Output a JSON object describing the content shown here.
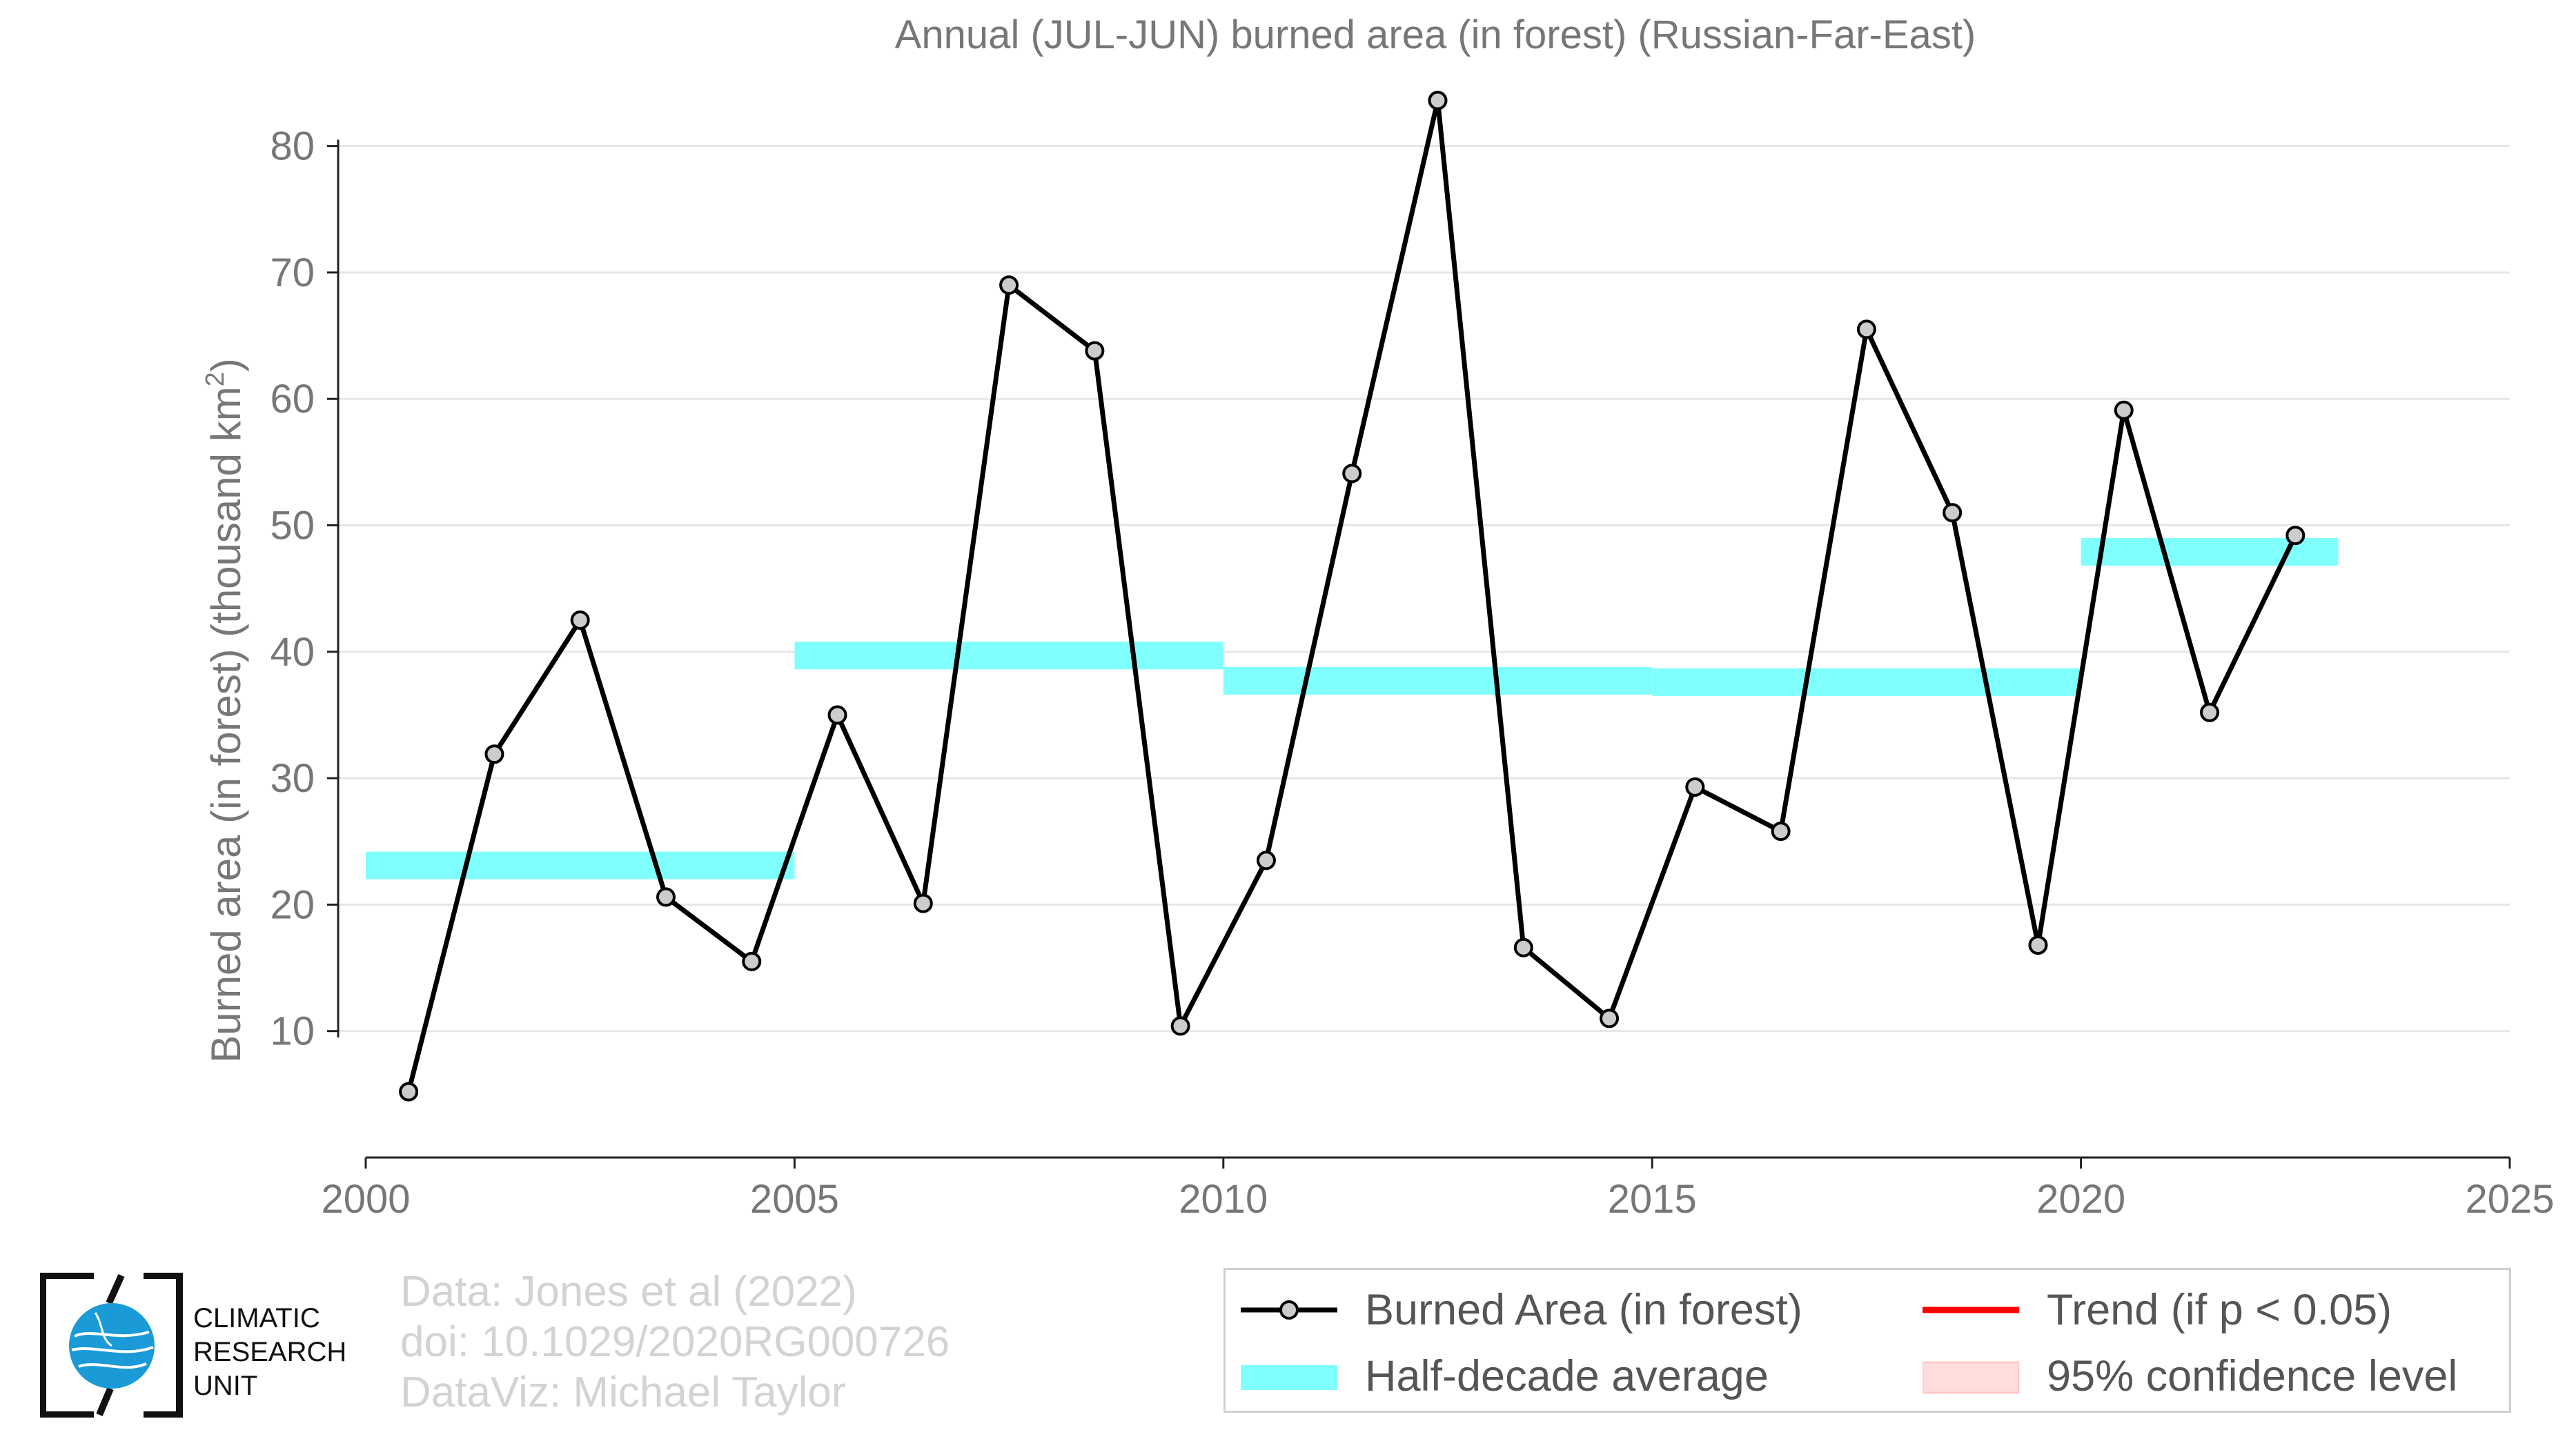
{
  "chart_data": {
    "type": "line",
    "title": "Annual (JUL-JUN) burned area (in forest) (Russian-Far-East)",
    "ylabel": "Burned area (in forest) (thousand km",
    "ylabel_sup": "2",
    "ylabel_close": ")",
    "xlim": [
      2000,
      2025
    ],
    "ylim": [
      0,
      85
    ],
    "xticks": [
      2000,
      2005,
      2010,
      2015,
      2020,
      2025
    ],
    "yticks": [
      10,
      20,
      30,
      40,
      50,
      60,
      70,
      80
    ],
    "grid": true,
    "series": [
      {
        "name": "Burned Area (in forest)",
        "color": "#000000",
        "marker_fill": "#cccccc",
        "x": [
          2000.5,
          2001.5,
          2002.5,
          2003.5,
          2004.5,
          2005.5,
          2006.5,
          2007.5,
          2008.5,
          2009.5,
          2010.5,
          2011.5,
          2012.5,
          2013.5,
          2014.5,
          2015.5,
          2016.5,
          2017.5,
          2018.5,
          2019.5,
          2020.5,
          2021.5,
          2022.5
        ],
        "y": [
          5.2,
          31.9,
          42.5,
          20.6,
          15.5,
          35.0,
          20.1,
          69.0,
          63.8,
          10.4,
          23.5,
          54.1,
          83.6,
          16.6,
          11.0,
          29.3,
          25.8,
          65.5,
          51.0,
          16.8,
          59.1,
          35.2,
          49.2
        ]
      }
    ],
    "half_decade_average": {
      "name": "Half-decade average",
      "color": "#80ffff",
      "segments": [
        {
          "x0": 2000,
          "x1": 2005,
          "y": 23.1
        },
        {
          "x0": 2005,
          "x1": 2010,
          "y": 39.7
        },
        {
          "x0": 2010,
          "x1": 2015,
          "y": 37.7
        },
        {
          "x0": 2015,
          "x1": 2020,
          "y": 37.6
        },
        {
          "x0": 2020,
          "x1": 2023,
          "y": 47.9
        }
      ]
    },
    "legend": {
      "position": "bottom-right",
      "items": [
        {
          "label": "Burned Area (in forest)",
          "color": "#000000"
        },
        {
          "label": "Trend (if p < 0.05)",
          "color": "#ff0000"
        },
        {
          "label": "Half-decade average",
          "color": "#80ffff"
        },
        {
          "label": "95% confidence level",
          "color": "#ffdddd"
        }
      ]
    }
  },
  "credits": {
    "line1": "Data: Jones et al (2022)",
    "line2": "doi: 10.1029/2020RG000726",
    "line3": "DataViz: Michael Taylor"
  },
  "logo": {
    "line1": "CLIMATIC",
    "line2": "RESEARCH",
    "line3": "UNIT",
    "globe_color": "#1a9ad6"
  }
}
